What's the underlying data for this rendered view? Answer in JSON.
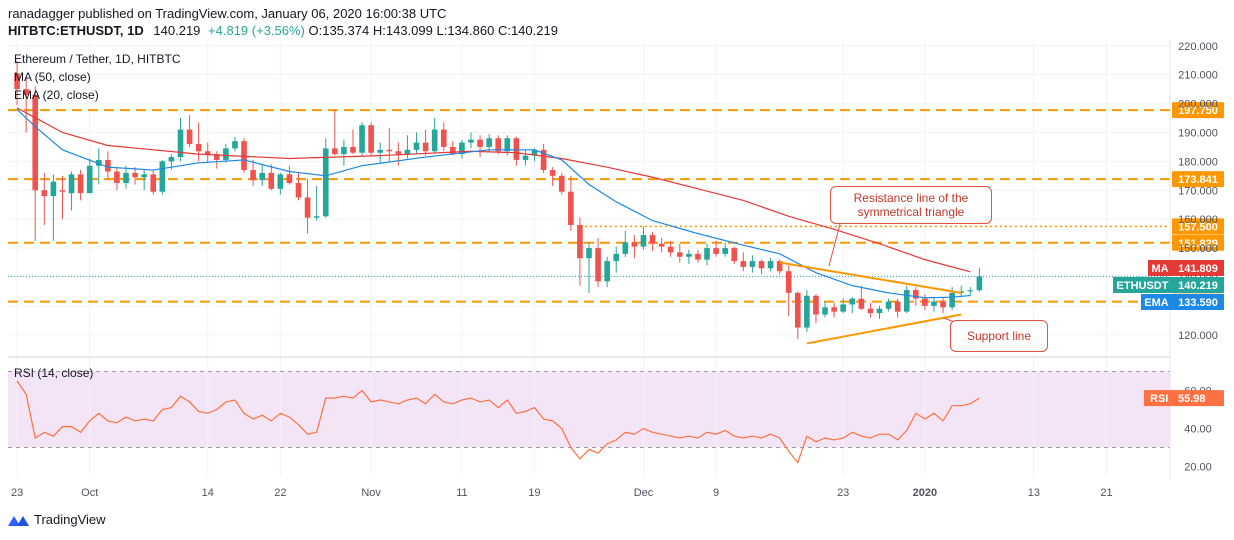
{
  "header": {
    "published": "ranadagger published on TradingView.com, January 06, 2020 16:00:38 UTC",
    "symbol": "HITBTC:ETHUSDT, 1D",
    "last": "140.219",
    "change": "+4.819 (+3.56%)",
    "open": "O:135.374",
    "high": "H:143.099",
    "low": "L:134.860",
    "close": "C:140.219"
  },
  "indicators": {
    "title": "Ethereum / Tether, 1D, HITBTC",
    "ma": "MA (50, close)",
    "ema": "EMA (20, close)",
    "rsi": "RSI (14, close)"
  },
  "annotations": {
    "resistance": "Resistance line of the symmetrical triangle",
    "support": "Support line"
  },
  "footer": {
    "brand": "TradingView"
  },
  "colors": {
    "up": "#26a69a",
    "down": "#ef5350",
    "ma": "#e53935",
    "ema": "#1e88e5",
    "level": "#ff9800",
    "rsi": "#ff7043",
    "rsi_band": "#f3e5f5",
    "trendline": "#ff9800"
  },
  "chart_data": {
    "type": "candlestick",
    "price_axis": {
      "ylim": [
        113,
        222
      ],
      "ticks": [
        120,
        130,
        140,
        150,
        160,
        170,
        180,
        190,
        200,
        210,
        220
      ],
      "tick_labels": [
        "120.000",
        "130.000",
        "140.000",
        "150.000",
        "160.000",
        "170.000",
        "180.000",
        "190.000",
        "200.000",
        "210.000",
        "220.000"
      ]
    },
    "x_axis": {
      "labels": [
        "23",
        "Oct",
        "14",
        "22",
        "Nov",
        "11",
        "19",
        "Dec",
        "9",
        "23",
        "2020",
        "13",
        "21"
      ],
      "label_days": [
        0,
        8,
        21,
        29,
        39,
        49,
        57,
        69,
        77,
        91,
        100,
        112,
        120
      ],
      "xlim": [
        -1,
        127
      ]
    },
    "levels": [
      {
        "value": 197.75,
        "label": "197.750",
        "style": "dashed"
      },
      {
        "value": 173.841,
        "label": "173.841",
        "style": "dashed"
      },
      {
        "value": 157.5,
        "label": "157.500",
        "style": "dotted"
      },
      {
        "value": 151.829,
        "label": "151.829",
        "style": "dashed"
      },
      {
        "value": 131.484,
        "label": "131.484",
        "style": "dashed"
      }
    ],
    "price_tags": [
      {
        "name": "MA",
        "value": 141.809,
        "label": "141.809"
      },
      {
        "name": "ETHUSDT",
        "value": 140.219,
        "label": "140.219"
      },
      {
        "name": "EMA",
        "value": 133.59,
        "label": "133.590"
      }
    ],
    "candles": [
      [
        210.5,
        214.8,
        199.5,
        205.0
      ],
      [
        205.0,
        209.5,
        190.0,
        203.0
      ],
      [
        203.0,
        206.0,
        152.5,
        170.0
      ],
      [
        170.0,
        176.0,
        158.0,
        168.0
      ],
      [
        168.0,
        175.5,
        152.5,
        173.0
      ],
      [
        170.0,
        175.0,
        160.0,
        169.5
      ],
      [
        169.0,
        176.5,
        163.0,
        175.5
      ],
      [
        175.5,
        177.0,
        166.5,
        169.0
      ],
      [
        169.0,
        181.0,
        169.0,
        178.5
      ],
      [
        178.5,
        184.5,
        172.0,
        180.5
      ],
      [
        180.5,
        183.5,
        174.0,
        176.5
      ],
      [
        176.5,
        178.0,
        170.0,
        172.5
      ],
      [
        172.5,
        178.5,
        170.5,
        176.0
      ],
      [
        176.0,
        178.0,
        172.0,
        174.5
      ],
      [
        174.5,
        177.0,
        170.0,
        175.5
      ],
      [
        175.5,
        177.0,
        168.5,
        169.5
      ],
      [
        169.5,
        180.5,
        168.5,
        180.0
      ],
      [
        180.0,
        182.5,
        177.0,
        181.5
      ],
      [
        181.5,
        195.0,
        180.0,
        191.0
      ],
      [
        191.0,
        196.0,
        185.0,
        186.0
      ],
      [
        186.0,
        193.5,
        180.0,
        183.5
      ],
      [
        183.5,
        186.5,
        179.5,
        182.5
      ],
      [
        182.5,
        183.5,
        177.5,
        180.5
      ],
      [
        180.5,
        186.0,
        179.5,
        184.5
      ],
      [
        184.5,
        188.5,
        183.5,
        187.0
      ],
      [
        187.0,
        188.0,
        176.0,
        177.0
      ],
      [
        177.0,
        180.5,
        171.5,
        173.5
      ],
      [
        173.5,
        179.0,
        171.5,
        176.0
      ],
      [
        176.0,
        179.0,
        170.0,
        170.5
      ],
      [
        170.5,
        176.0,
        168.5,
        175.5
      ],
      [
        175.5,
        178.5,
        172.0,
        172.5
      ],
      [
        172.5,
        176.0,
        166.5,
        167.5
      ],
      [
        167.5,
        174.0,
        155.0,
        160.5
      ],
      [
        160.5,
        171.5,
        159.5,
        161.0
      ],
      [
        161.0,
        188.0,
        160.5,
        184.5
      ],
      [
        184.5,
        198.0,
        182.0,
        182.5
      ],
      [
        182.5,
        187.5,
        178.5,
        185.0
      ],
      [
        185.0,
        191.0,
        182.5,
        183.0
      ],
      [
        183.0,
        193.5,
        182.0,
        192.5
      ],
      [
        192.5,
        193.5,
        182.0,
        183.0
      ],
      [
        183.0,
        186.5,
        179.5,
        184.0
      ],
      [
        184.0,
        191.5,
        180.0,
        183.5
      ],
      [
        183.5,
        186.5,
        178.5,
        182.5
      ],
      [
        182.5,
        189.0,
        181.0,
        184.0
      ],
      [
        184.0,
        190.0,
        182.5,
        186.5
      ],
      [
        186.5,
        191.0,
        182.0,
        183.5
      ],
      [
        183.5,
        195.0,
        183.0,
        191.0
      ],
      [
        191.0,
        193.5,
        183.5,
        185.0
      ],
      [
        185.0,
        187.0,
        182.0,
        182.5
      ],
      [
        182.5,
        187.5,
        181.0,
        186.5
      ],
      [
        186.5,
        190.0,
        184.5,
        187.5
      ],
      [
        187.5,
        189.0,
        181.5,
        185.0
      ],
      [
        185.0,
        189.5,
        183.5,
        188.0
      ],
      [
        188.0,
        189.0,
        182.5,
        183.5
      ],
      [
        183.5,
        189.0,
        182.0,
        188.0
      ],
      [
        188.0,
        188.5,
        178.5,
        180.5
      ],
      [
        180.5,
        184.0,
        178.5,
        182.0
      ],
      [
        182.0,
        184.5,
        180.0,
        184.0
      ],
      [
        184.0,
        186.0,
        176.0,
        177.0
      ],
      [
        177.0,
        178.0,
        171.5,
        175.0
      ],
      [
        175.0,
        176.0,
        168.5,
        169.5
      ],
      [
        169.5,
        175.0,
        156.0,
        158.0
      ],
      [
        158.0,
        160.5,
        137.0,
        146.5
      ],
      [
        146.5,
        152.0,
        134.5,
        150.0
      ],
      [
        150.0,
        153.5,
        136.5,
        138.5
      ],
      [
        138.5,
        147.0,
        136.5,
        145.5
      ],
      [
        145.5,
        150.5,
        141.5,
        148.0
      ],
      [
        148.0,
        156.0,
        147.0,
        152.0
      ],
      [
        152.0,
        154.5,
        146.5,
        150.5
      ],
      [
        150.5,
        157.5,
        149.5,
        154.5
      ],
      [
        154.5,
        155.5,
        149.0,
        151.5
      ],
      [
        151.5,
        153.5,
        148.5,
        150.5
      ],
      [
        150.5,
        152.5,
        147.0,
        148.5
      ],
      [
        148.5,
        151.5,
        145.0,
        147.0
      ],
      [
        147.0,
        149.5,
        144.5,
        148.0
      ],
      [
        148.0,
        149.5,
        145.0,
        146.0
      ],
      [
        146.0,
        151.5,
        144.0,
        150.0
      ],
      [
        150.0,
        152.5,
        147.0,
        148.0
      ],
      [
        148.0,
        152.0,
        147.0,
        150.0
      ],
      [
        150.0,
        150.5,
        144.5,
        145.5
      ],
      [
        145.5,
        148.5,
        142.0,
        143.5
      ],
      [
        143.5,
        147.5,
        141.5,
        145.5
      ],
      [
        145.5,
        146.0,
        141.0,
        143.0
      ],
      [
        143.0,
        146.5,
        142.0,
        145.5
      ],
      [
        145.5,
        146.0,
        141.0,
        142.0
      ],
      [
        142.0,
        144.0,
        126.5,
        134.5
      ],
      [
        134.5,
        135.0,
        118.5,
        122.5
      ],
      [
        122.5,
        135.5,
        121.0,
        133.5
      ],
      [
        133.5,
        134.0,
        124.0,
        127.0
      ],
      [
        127.0,
        131.5,
        126.0,
        129.5
      ],
      [
        129.5,
        131.0,
        126.0,
        128.0
      ],
      [
        128.0,
        132.5,
        127.5,
        130.5
      ],
      [
        130.5,
        133.0,
        127.5,
        132.5
      ],
      [
        132.5,
        137.0,
        128.5,
        129.0
      ],
      [
        129.0,
        131.0,
        126.0,
        127.5
      ],
      [
        127.5,
        130.0,
        125.5,
        129.0
      ],
      [
        129.0,
        132.5,
        128.0,
        131.5
      ],
      [
        131.5,
        132.5,
        126.0,
        128.0
      ],
      [
        128.0,
        137.0,
        127.5,
        135.5
      ],
      [
        135.5,
        136.5,
        130.0,
        132.5
      ],
      [
        132.5,
        134.0,
        128.5,
        130.0
      ],
      [
        130.0,
        133.0,
        128.0,
        131.5
      ],
      [
        131.5,
        133.0,
        127.5,
        129.5
      ],
      [
        129.5,
        136.5,
        128.5,
        134.5
      ],
      [
        134.5,
        137.0,
        133.0,
        135.0
      ],
      [
        135.0,
        136.5,
        133.5,
        135.4
      ],
      [
        135.4,
        143.1,
        134.9,
        140.2
      ]
    ],
    "ma_50": [
      [
        0,
        198.5
      ],
      [
        5,
        190.0
      ],
      [
        10,
        185.5
      ],
      [
        20,
        182.5
      ],
      [
        30,
        181.0
      ],
      [
        40,
        182.0
      ],
      [
        50,
        183.5
      ],
      [
        55,
        183.0
      ],
      [
        60,
        181.0
      ],
      [
        65,
        178.0
      ],
      [
        70,
        174.5
      ],
      [
        75,
        170.5
      ],
      [
        80,
        166.5
      ],
      [
        85,
        161.0
      ],
      [
        90,
        156.5
      ],
      [
        95,
        151.5
      ],
      [
        100,
        146.0
      ],
      [
        105,
        141.8
      ]
    ],
    "ema_20": [
      [
        0,
        198.0
      ],
      [
        2,
        192.0
      ],
      [
        5,
        184.0
      ],
      [
        10,
        178.0
      ],
      [
        15,
        177.0
      ],
      [
        20,
        179.5
      ],
      [
        25,
        180.5
      ],
      [
        30,
        176.5
      ],
      [
        34,
        175.0
      ],
      [
        38,
        178.5
      ],
      [
        45,
        181.5
      ],
      [
        52,
        184.0
      ],
      [
        57,
        184.0
      ],
      [
        60,
        180.5
      ],
      [
        63,
        172.0
      ],
      [
        66,
        166.0
      ],
      [
        70,
        159.5
      ],
      [
        75,
        155.0
      ],
      [
        80,
        151.0
      ],
      [
        84,
        148.0
      ],
      [
        88,
        141.5
      ],
      [
        92,
        137.0
      ],
      [
        96,
        134.5
      ],
      [
        100,
        132.8
      ],
      [
        103,
        133.0
      ],
      [
        105,
        133.6
      ]
    ],
    "trendlines": [
      {
        "name": "resistance",
        "from": [
          84,
          145.0
        ],
        "to": [
          104,
          134.5
        ]
      },
      {
        "name": "support",
        "from": [
          87,
          117.0
        ],
        "to": [
          104,
          127.0
        ]
      },
      {
        "name": "level-157-short",
        "from": [
          62,
          157.5
        ],
        "to": [
          104,
          157.5
        ]
      }
    ],
    "rsi": {
      "ylim": [
        15,
        75
      ],
      "ticks": [
        20,
        40,
        60
      ],
      "tick_labels": [
        "20.00",
        "40.00",
        "60.00"
      ],
      "bands": [
        30,
        70
      ],
      "value_label": "55.98",
      "values": [
        [
          0,
          65
        ],
        [
          1,
          58
        ],
        [
          2,
          35
        ],
        [
          3,
          38
        ],
        [
          4,
          36
        ],
        [
          5,
          41
        ],
        [
          6,
          41
        ],
        [
          7,
          38
        ],
        [
          8,
          44
        ],
        [
          9,
          48
        ],
        [
          10,
          44
        ],
        [
          11,
          43
        ],
        [
          12,
          46
        ],
        [
          13,
          44
        ],
        [
          14,
          45
        ],
        [
          15,
          44
        ],
        [
          16,
          50
        ],
        [
          17,
          51
        ],
        [
          18,
          57
        ],
        [
          19,
          54
        ],
        [
          20,
          49
        ],
        [
          21,
          48
        ],
        [
          22,
          50
        ],
        [
          23,
          54
        ],
        [
          24,
          55
        ],
        [
          25,
          48
        ],
        [
          26,
          45
        ],
        [
          27,
          47
        ],
        [
          28,
          44
        ],
        [
          29,
          48
        ],
        [
          30,
          46
        ],
        [
          31,
          42
        ],
        [
          32,
          37
        ],
        [
          33,
          38
        ],
        [
          34,
          56
        ],
        [
          35,
          56
        ],
        [
          36,
          57
        ],
        [
          37,
          56
        ],
        [
          38,
          60
        ],
        [
          39,
          54
        ],
        [
          40,
          55
        ],
        [
          41,
          54
        ],
        [
          42,
          53
        ],
        [
          43,
          55
        ],
        [
          44,
          56
        ],
        [
          45,
          53
        ],
        [
          46,
          58
        ],
        [
          47,
          54
        ],
        [
          48,
          53
        ],
        [
          49,
          55
        ],
        [
          50,
          56
        ],
        [
          51,
          54
        ],
        [
          52,
          55
        ],
        [
          53,
          51
        ],
        [
          54,
          55
        ],
        [
          55,
          48
        ],
        [
          56,
          49
        ],
        [
          57,
          51
        ],
        [
          58,
          45
        ],
        [
          59,
          44
        ],
        [
          60,
          40
        ],
        [
          61,
          30
        ],
        [
          62,
          24
        ],
        [
          63,
          29
        ],
        [
          64,
          27
        ],
        [
          65,
          32
        ],
        [
          66,
          34
        ],
        [
          67,
          38
        ],
        [
          68,
          37
        ],
        [
          69,
          40
        ],
        [
          70,
          38
        ],
        [
          71,
          37
        ],
        [
          72,
          36
        ],
        [
          73,
          35
        ],
        [
          74,
          36
        ],
        [
          75,
          35
        ],
        [
          76,
          38
        ],
        [
          77,
          37
        ],
        [
          78,
          39
        ],
        [
          79,
          36
        ],
        [
          80,
          35
        ],
        [
          81,
          36
        ],
        [
          82,
          35
        ],
        [
          83,
          37
        ],
        [
          84,
          35
        ],
        [
          85,
          28
        ],
        [
          86,
          22
        ],
        [
          87,
          36
        ],
        [
          88,
          33
        ],
        [
          89,
          35
        ],
        [
          90,
          34
        ],
        [
          91,
          35
        ],
        [
          92,
          38
        ],
        [
          93,
          36
        ],
        [
          94,
          35
        ],
        [
          95,
          37
        ],
        [
          96,
          37
        ],
        [
          97,
          34
        ],
        [
          98,
          39
        ],
        [
          99,
          48
        ],
        [
          100,
          45
        ],
        [
          101,
          48
        ],
        [
          102,
          44
        ],
        [
          103,
          52
        ],
        [
          104,
          52
        ],
        [
          105,
          53
        ],
        [
          106,
          56
        ]
      ]
    }
  }
}
